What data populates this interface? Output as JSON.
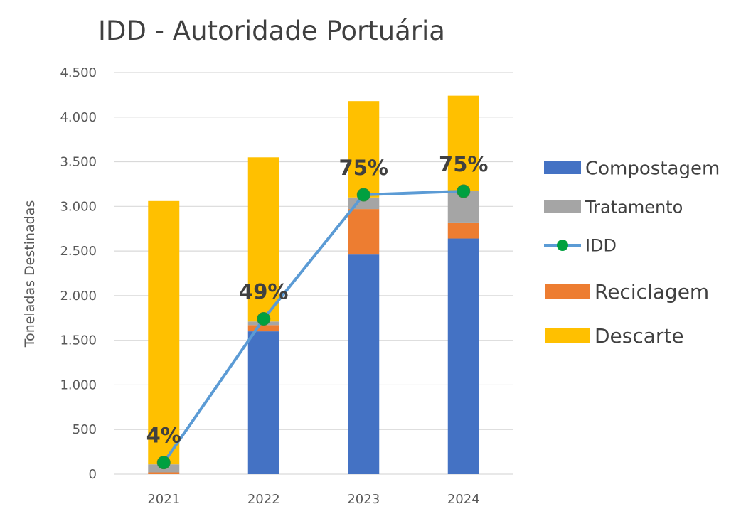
{
  "chart_data": {
    "type": "bar",
    "stacked": true,
    "title": "IDD - Autoridade Portuária",
    "ylabel": "Toneladas Destinadas",
    "xlabel": "",
    "categories": [
      "2021",
      "2022",
      "2023",
      "2024"
    ],
    "ylim": [
      0,
      4500
    ],
    "yticks": [
      0,
      500,
      1000,
      1500,
      2000,
      2500,
      3000,
      3500,
      4000,
      4500
    ],
    "ytick_labels": [
      "0",
      "500",
      "1.000",
      "1.500",
      "2.000",
      "2.500",
      "3.000",
      "3.500",
      "4.000",
      "4.500"
    ],
    "grid": true,
    "legend_position": "right",
    "series": [
      {
        "name": "Compostagem",
        "values": [
          0,
          1600,
          2460,
          2640
        ],
        "color": "#4472C4"
      },
      {
        "name": "Reciclagem",
        "values": [
          20,
          70,
          510,
          180
        ],
        "color": "#ED7D31"
      },
      {
        "name": "Tratamento",
        "values": [
          90,
          40,
          130,
          350
        ],
        "color": "#A5A5A5"
      },
      {
        "name": "Descarte",
        "values": [
          2950,
          1840,
          1080,
          1070
        ],
        "color": "#FFC000"
      }
    ],
    "line": {
      "name": "IDD",
      "values": [
        130,
        1740,
        3130,
        3170
      ],
      "labels": [
        "4%",
        "49%",
        "75%",
        "75%"
      ],
      "color": "#5B9BD5",
      "marker_color": "#00A040"
    },
    "legend": [
      "Compostagem",
      "Tratamento",
      "IDD",
      "Reciclagem",
      "Descarte"
    ]
  }
}
